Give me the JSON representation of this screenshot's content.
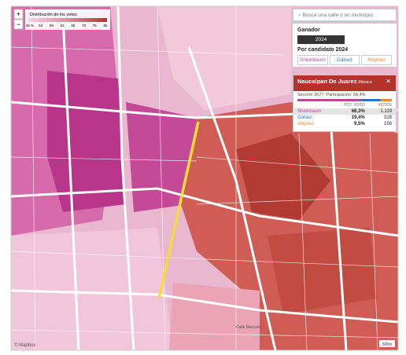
{
  "legend": {
    "title": "Distribución de los votos",
    "ticks": [
      "45 %",
      "54",
      "59",
      "63",
      "66",
      "70",
      "75",
      "85"
    ]
  },
  "search": {
    "placeholder": "Busca una calle o un municipio"
  },
  "controls": {
    "zoom_in": "+",
    "zoom_out": "−"
  },
  "panel": {
    "winner_label": "Ganador",
    "year_button": "2024",
    "by_candidate_label": "Por candidato 2024",
    "candidates": [
      "Sheinbaum",
      "Gálvez",
      "Máynez"
    ]
  },
  "popup": {
    "title": "Naucalpan De Juarez",
    "state": "México",
    "subtitle": "Sección 2677. Participación: 58,4%",
    "close": "✕",
    "headers": [
      "PCT. VOTO",
      "VOTOS"
    ],
    "rows": [
      [
        "Sheinbaum",
        "68,3%",
        "1.119"
      ],
      [
        "Gálvez",
        "19,4%",
        "318"
      ],
      [
        "Máynez",
        "9,5%",
        "156"
      ]
    ]
  },
  "map": {
    "labels": [
      "Calle Mercurio"
    ],
    "attribution": "© Mapbox",
    "scale": "500m"
  }
}
